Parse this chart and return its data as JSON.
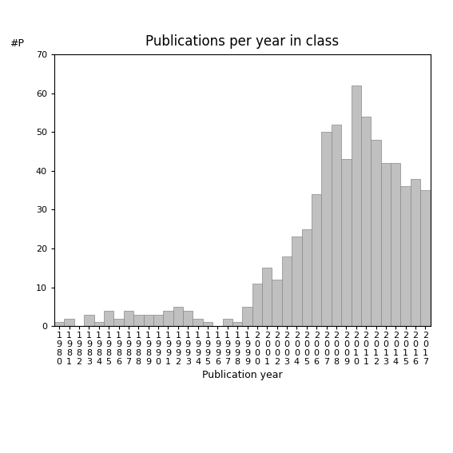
{
  "title": "Publications per year in class",
  "xlabel": "Publication year",
  "ylabel": "#P",
  "ylim": [
    0,
    70
  ],
  "bar_color": "#c0c0c0",
  "bar_edgecolor": "#888888",
  "categories": [
    "1980",
    "1981",
    "1982",
    "1983",
    "1984",
    "1985",
    "1986",
    "1987",
    "1988",
    "1989",
    "1990",
    "1991",
    "1992",
    "1993",
    "1994",
    "1995",
    "1996",
    "1997",
    "1998",
    "1999",
    "2000",
    "2001",
    "2002",
    "2003",
    "2004",
    "2005",
    "2006",
    "2007",
    "2008",
    "2009",
    "2010",
    "2011",
    "2012",
    "2013",
    "2014",
    "2015",
    "2016",
    "2017"
  ],
  "values": [
    1,
    2,
    0,
    3,
    1,
    4,
    2,
    4,
    3,
    3,
    3,
    4,
    5,
    4,
    2,
    1,
    0,
    2,
    1,
    5,
    11,
    15,
    12,
    18,
    23,
    25,
    34,
    50,
    52,
    43,
    62,
    54,
    48,
    42,
    42,
    36,
    38,
    35
  ],
  "yticks": [
    0,
    10,
    20,
    30,
    40,
    50,
    60,
    70
  ],
  "background_color": "#ffffff",
  "title_fontsize": 12,
  "axis_label_fontsize": 9,
  "tick_label_fontsize": 8
}
